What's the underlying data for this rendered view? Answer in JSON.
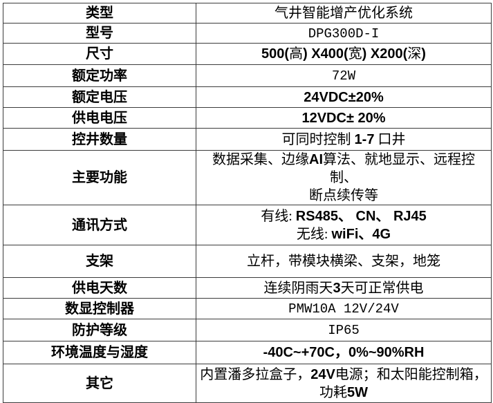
{
  "page": {
    "background_color": "#ffffff",
    "border_color": "#3a3a3a",
    "text_color": "#000000"
  },
  "table": {
    "rows": [
      {
        "label": "类型",
        "text": "气井智能增产优化系统",
        "runs": [
          [
            [
              "serif",
              "气井智能增产优化系统"
            ]
          ]
        ]
      },
      {
        "label": "型号",
        "text": "DPG300D-I",
        "runs": [
          [
            [
              "mono",
              "DPG300D-I"
            ]
          ]
        ]
      },
      {
        "label": "尺寸",
        "text": "500(高) X400(宽) X200(深)",
        "runs": [
          [
            [
              "sansbold",
              "500("
            ],
            [
              "serif",
              "高"
            ],
            [
              "sansbold",
              ") X400("
            ],
            [
              "serif",
              "宽"
            ],
            [
              "sansbold",
              ") X200("
            ],
            [
              "serif",
              "深"
            ],
            [
              "sansbold",
              ")"
            ]
          ]
        ]
      },
      {
        "label": "额定功率",
        "text": "72W",
        "runs": [
          [
            [
              "mono",
              "72W"
            ]
          ]
        ]
      },
      {
        "label": "额定电压",
        "text": "24VDC±20%",
        "runs": [
          [
            [
              "sansbold",
              "24VDC±20%"
            ]
          ]
        ]
      },
      {
        "label": "供电电压",
        "text": "12VDC± 20%",
        "runs": [
          [
            [
              "sansbold",
              "12VDC± 20%"
            ]
          ]
        ]
      },
      {
        "label": "控井数量",
        "text": "可同时控制 1-7 口井",
        "runs": [
          [
            [
              "serif",
              "可同时控制 "
            ],
            [
              "sansbold",
              "1-7"
            ],
            [
              "serif",
              " 口井"
            ]
          ]
        ]
      },
      {
        "label": "主要功能",
        "text": "数据采集、边缘AI算法、就地显示、远程控制、断点续传等",
        "runs": [
          [
            [
              "serif",
              "数据采集、边缘"
            ],
            [
              "sansbold",
              "AI"
            ],
            [
              "serif",
              "算法、就地显示、远程控制、"
            ]
          ],
          [
            [
              "serif",
              "断点续传等"
            ]
          ]
        ]
      },
      {
        "label": "通讯方式",
        "text": "有线: RS485、 CN、 RJ45\n无线: wiFi、4G",
        "runs": [
          [
            [
              "serif",
              "有线: "
            ],
            [
              "sansbold",
              "RS485、 CN、 RJ45"
            ]
          ],
          [
            [
              "serif",
              "无线: "
            ],
            [
              "sansbold",
              "wiFi、4G"
            ]
          ]
        ]
      },
      {
        "label": "支架",
        "text": "立杆，带模块横梁、支架，地笼",
        "runs": [
          [
            [
              "serif",
              "立杆，带模块横梁、支架，地笼"
            ]
          ]
        ]
      },
      {
        "label": "供电天数",
        "text": "连续阴雨天3天可正常供电",
        "runs": [
          [
            [
              "serif",
              "连续阴雨天"
            ],
            [
              "sansbold",
              "3"
            ],
            [
              "serif",
              "天可正常供电"
            ]
          ]
        ]
      },
      {
        "label": "数显控制器",
        "text": "PMW10A 12V/24V",
        "runs": [
          [
            [
              "mono",
              "PMW10A 12V/24V"
            ]
          ]
        ]
      },
      {
        "label": "防护等级",
        "text": "IP65",
        "runs": [
          [
            [
              "mono",
              "IP65"
            ]
          ]
        ]
      },
      {
        "label": "环境温度与湿度",
        "text": "-40C~+70C，0%~90%RH",
        "runs": [
          [
            [
              "sansbold",
              "-40C~+70C，0%~90%RH"
            ]
          ]
        ]
      },
      {
        "label": "其它",
        "text": "内置潘多拉盒子，24V电源；和太阳能控制箱，功耗5W",
        "runs": [
          [
            [
              "serif",
              "内置潘多拉盒子，"
            ],
            [
              "sansbold",
              "24V"
            ],
            [
              "serif",
              "电源；和太阳能控制箱，"
            ]
          ],
          [
            [
              "serif",
              "功耗"
            ],
            [
              "sansbold",
              "5W"
            ]
          ]
        ]
      }
    ]
  }
}
